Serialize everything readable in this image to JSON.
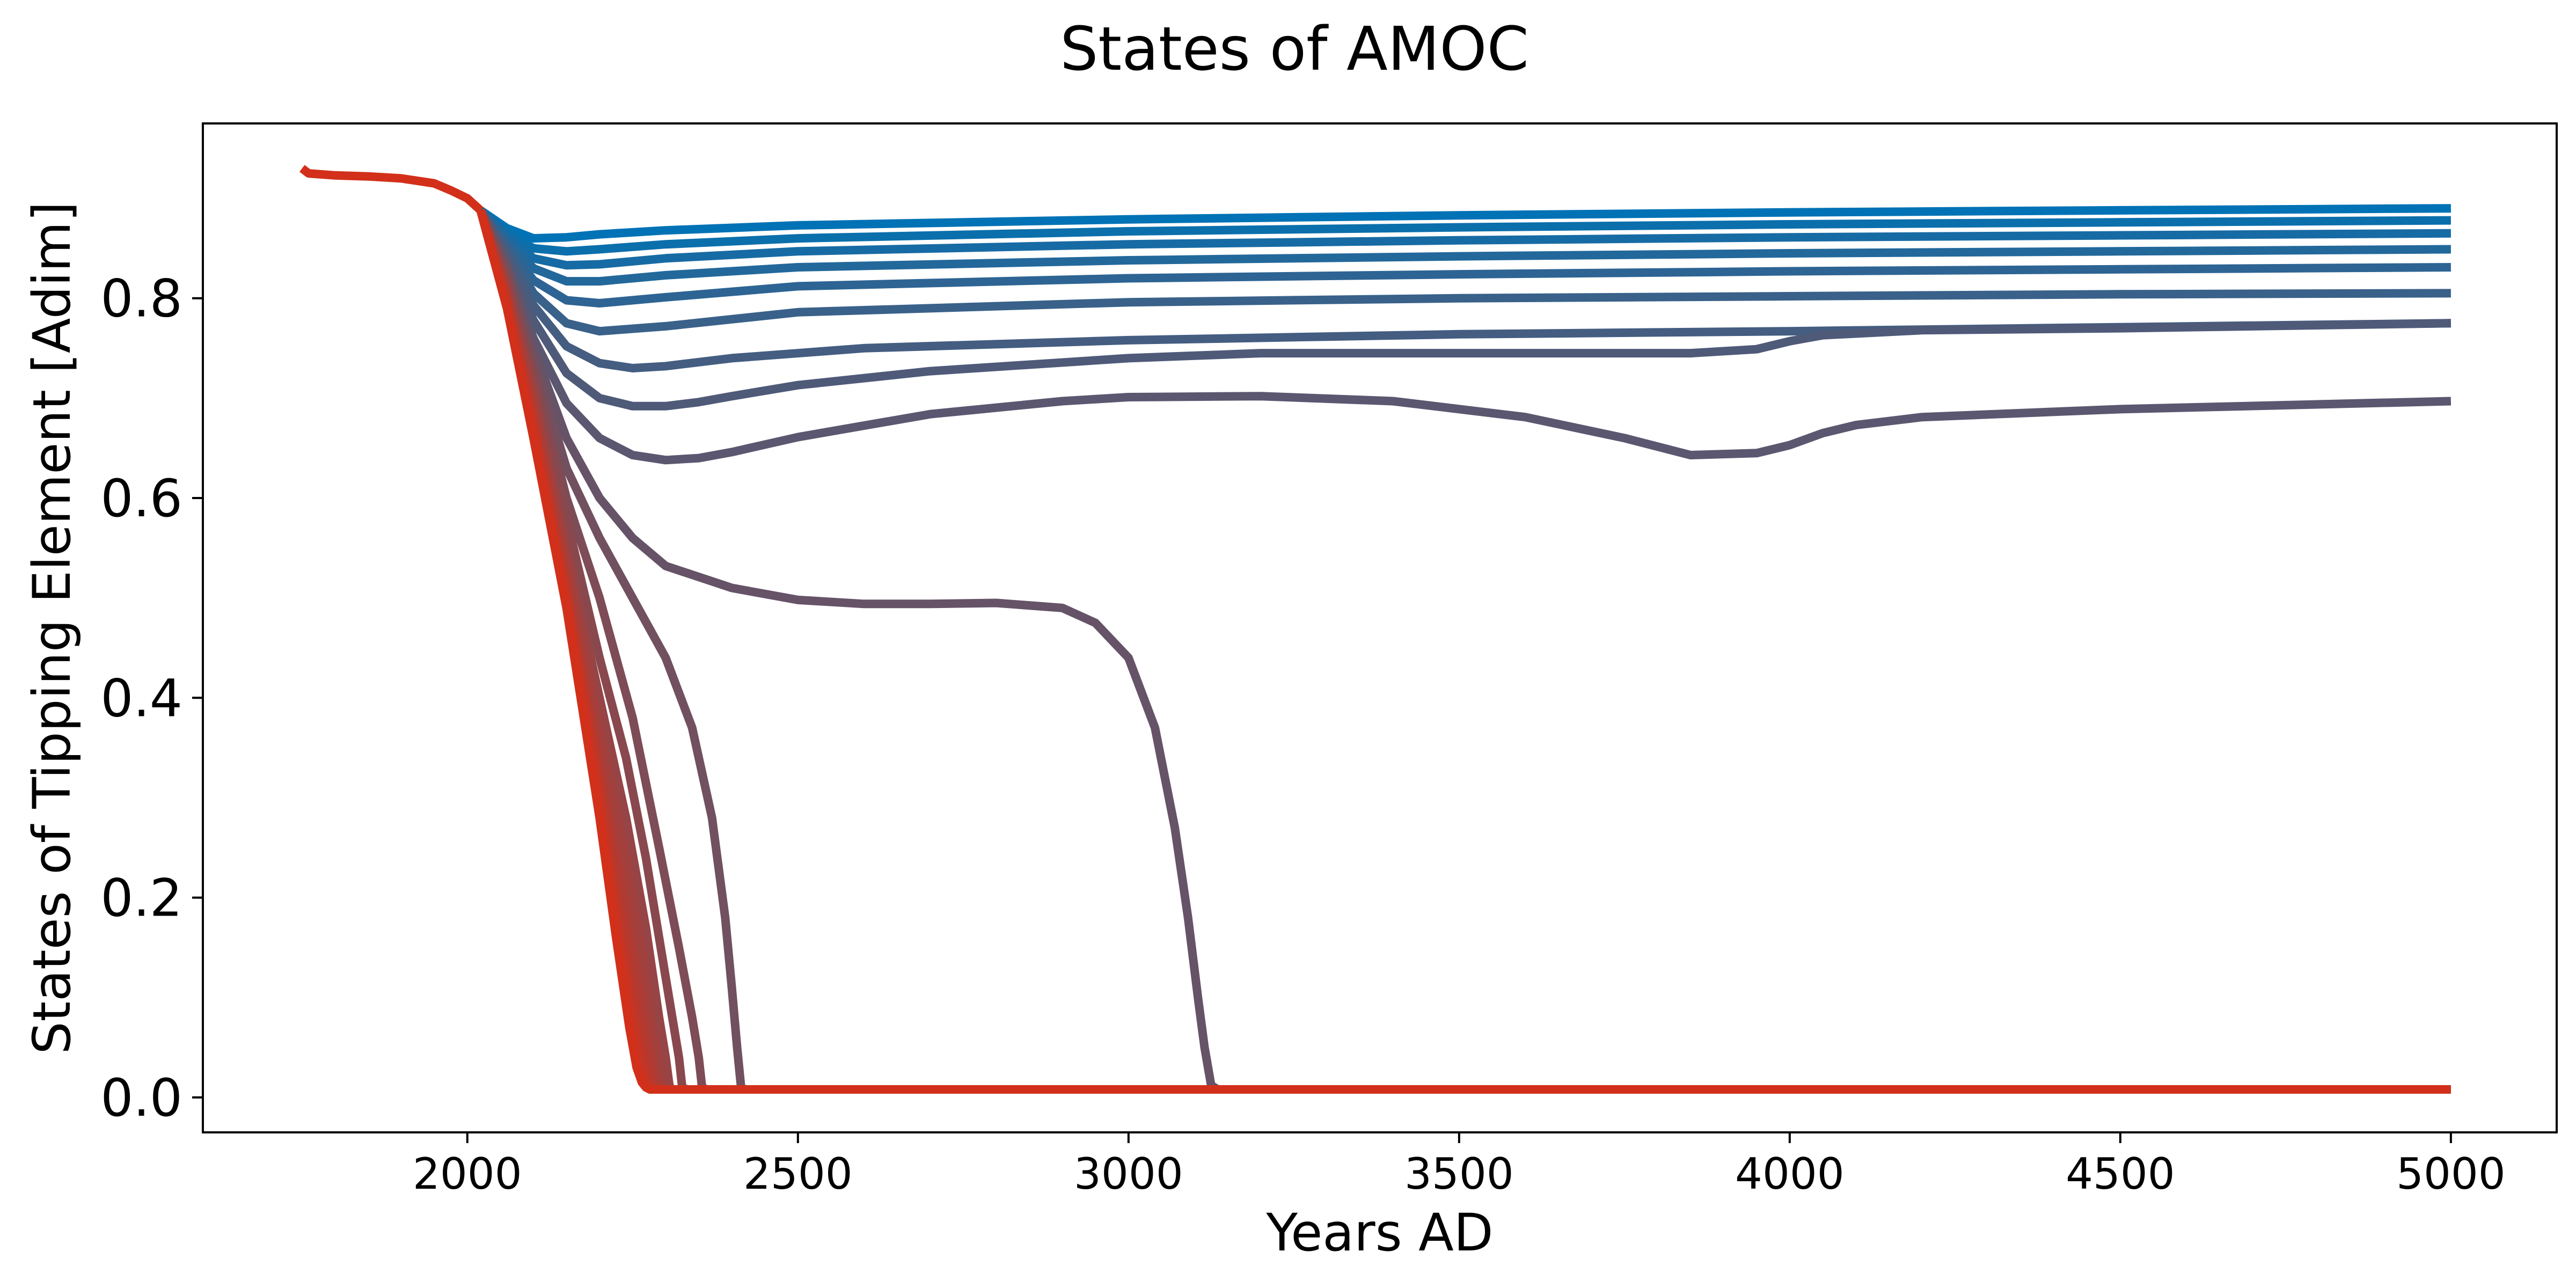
{
  "chart_data": {
    "type": "line",
    "title": "States of AMOC",
    "xlabel": "Years AD",
    "ylabel": "States of Tipping Element [Adim]",
    "xlim": [
      1600,
      5160
    ],
    "ylim": [
      -0.035,
      0.975
    ],
    "xticks": [
      2000,
      2500,
      3000,
      3500,
      4000,
      4500,
      5000
    ],
    "yticks": [
      0.0,
      0.2,
      0.4,
      0.6,
      0.8
    ],
    "xtick_labels": [
      "2000",
      "2500",
      "3000",
      "3500",
      "4000",
      "4500",
      "5000"
    ],
    "ytick_labels": [
      "0.0",
      "0.2",
      "0.4",
      "0.6",
      "0.8"
    ],
    "grid": false,
    "legend": "none",
    "color_start": "#0072b5",
    "color_end": "#d2301a",
    "history": {
      "x": [
        1750,
        1760,
        1800,
        1850,
        1900,
        1950,
        1975,
        2000,
        2020
      ],
      "y": [
        0.93,
        0.925,
        0.923,
        0.922,
        0.92,
        0.915,
        0.908,
        0.9,
        0.888
      ]
    },
    "series": [
      {
        "x": [
          2020,
          2060,
          2100,
          2150,
          2200,
          2300,
          2500,
          3000,
          3500,
          4000,
          4500,
          5000
        ],
        "y": [
          0.888,
          0.87,
          0.86,
          0.861,
          0.864,
          0.868,
          0.873,
          0.879,
          0.883,
          0.886,
          0.888,
          0.89
        ]
      },
      {
        "x": [
          2020,
          2060,
          2100,
          2150,
          2200,
          2300,
          2500,
          3000,
          3500,
          4000,
          4500,
          5000
        ],
        "y": [
          0.888,
          0.866,
          0.85,
          0.847,
          0.849,
          0.854,
          0.86,
          0.867,
          0.871,
          0.874,
          0.876,
          0.878
        ]
      },
      {
        "x": [
          2020,
          2060,
          2100,
          2150,
          2200,
          2300,
          2500,
          3000,
          3500,
          4000,
          4500,
          5000
        ],
        "y": [
          0.888,
          0.862,
          0.84,
          0.833,
          0.834,
          0.84,
          0.847,
          0.854,
          0.858,
          0.861,
          0.863,
          0.865
        ]
      },
      {
        "x": [
          2020,
          2060,
          2100,
          2150,
          2200,
          2300,
          2500,
          3000,
          3500,
          4000,
          4500,
          5000
        ],
        "y": [
          0.888,
          0.858,
          0.83,
          0.817,
          0.817,
          0.823,
          0.831,
          0.838,
          0.842,
          0.845,
          0.847,
          0.849
        ]
      },
      {
        "x": [
          2020,
          2060,
          2100,
          2150,
          2200,
          2300,
          2500,
          3000,
          3500,
          4000,
          4500,
          5000
        ],
        "y": [
          0.888,
          0.854,
          0.818,
          0.798,
          0.795,
          0.801,
          0.812,
          0.82,
          0.824,
          0.827,
          0.829,
          0.831
        ]
      },
      {
        "x": [
          2020,
          2060,
          2100,
          2150,
          2200,
          2300,
          2500,
          3000,
          3500,
          4000,
          4500,
          5000
        ],
        "y": [
          0.888,
          0.85,
          0.805,
          0.775,
          0.767,
          0.772,
          0.786,
          0.796,
          0.8,
          0.802,
          0.804,
          0.805
        ]
      },
      {
        "x": [
          2020,
          2060,
          2100,
          2150,
          2200,
          2250,
          2300,
          2400,
          2600,
          3000,
          3500,
          4000,
          4500,
          5000
        ],
        "y": [
          0.888,
          0.846,
          0.793,
          0.752,
          0.735,
          0.73,
          0.732,
          0.74,
          0.75,
          0.758,
          0.764,
          0.767,
          0.771,
          0.775
        ]
      },
      {
        "x": [
          2020,
          2060,
          2100,
          2150,
          2200,
          2250,
          2300,
          2350,
          2400,
          2500,
          2700,
          3000,
          3200,
          3500,
          3700,
          3850,
          3950,
          4000,
          4050,
          4200,
          4500,
          5000
        ],
        "y": [
          0.888,
          0.84,
          0.778,
          0.725,
          0.7,
          0.692,
          0.692,
          0.696,
          0.702,
          0.713,
          0.727,
          0.74,
          0.745,
          0.745,
          0.745,
          0.745,
          0.749,
          0.757,
          0.763,
          0.768,
          0.77,
          0.775
        ]
      },
      {
        "x": [
          2020,
          2060,
          2100,
          2150,
          2200,
          2250,
          2300,
          2350,
          2400,
          2500,
          2700,
          2900,
          3000,
          3200,
          3400,
          3600,
          3750,
          3850,
          3950,
          4000,
          4050,
          4100,
          4200,
          4500,
          5000
        ],
        "y": [
          0.888,
          0.835,
          0.76,
          0.695,
          0.66,
          0.643,
          0.638,
          0.64,
          0.646,
          0.661,
          0.684,
          0.697,
          0.701,
          0.702,
          0.697,
          0.681,
          0.66,
          0.643,
          0.645,
          0.653,
          0.665,
          0.673,
          0.681,
          0.689,
          0.697
        ]
      },
      {
        "x": [
          2020,
          2060,
          2100,
          2150,
          2200,
          2250,
          2300,
          2400,
          2500,
          2600,
          2700,
          2800,
          2900,
          2950,
          3000,
          3040,
          3070,
          3090,
          3105,
          3115,
          3125,
          3135,
          3200,
          4000,
          5000
        ],
        "y": [
          0.888,
          0.83,
          0.75,
          0.66,
          0.6,
          0.56,
          0.532,
          0.51,
          0.498,
          0.494,
          0.494,
          0.495,
          0.49,
          0.475,
          0.44,
          0.37,
          0.27,
          0.18,
          0.1,
          0.05,
          0.012,
          0.008,
          0.008,
          0.008,
          0.008
        ]
      },
      {
        "x": [
          2020,
          2060,
          2100,
          2150,
          2200,
          2250,
          2300,
          2340,
          2370,
          2390,
          2400,
          2408,
          2414,
          2420,
          3000,
          5000
        ],
        "y": [
          0.888,
          0.83,
          0.74,
          0.63,
          0.56,
          0.5,
          0.44,
          0.37,
          0.28,
          0.18,
          0.11,
          0.05,
          0.01,
          0.008,
          0.008,
          0.008
        ]
      },
      {
        "x": [
          2020,
          2060,
          2100,
          2150,
          2200,
          2250,
          2290,
          2320,
          2340,
          2350,
          2355,
          2362,
          3000,
          5000
        ],
        "y": [
          0.888,
          0.82,
          0.73,
          0.6,
          0.5,
          0.38,
          0.25,
          0.15,
          0.08,
          0.04,
          0.01,
          0.008,
          0.008,
          0.008
        ]
      },
      {
        "x": [
          2020,
          2060,
          2100,
          2150,
          2200,
          2240,
          2270,
          2290,
          2310,
          2320,
          2325,
          2332,
          3000,
          5000
        ],
        "y": [
          0.888,
          0.82,
          0.72,
          0.58,
          0.44,
          0.34,
          0.24,
          0.16,
          0.08,
          0.04,
          0.01,
          0.008,
          0.008,
          0.008
        ]
      },
      {
        "x": [
          2020,
          2060,
          2100,
          2150,
          2200,
          2240,
          2270,
          2290,
          2300,
          2306,
          2312,
          3000,
          5000
        ],
        "y": [
          0.888,
          0.81,
          0.71,
          0.55,
          0.4,
          0.28,
          0.17,
          0.08,
          0.04,
          0.01,
          0.008,
          0.008,
          0.008
        ]
      },
      {
        "x": [
          2020,
          2060,
          2100,
          2150,
          2200,
          2240,
          2265,
          2280,
          2290,
          2296,
          2302,
          3000,
          5000
        ],
        "y": [
          0.888,
          0.81,
          0.7,
          0.54,
          0.37,
          0.24,
          0.14,
          0.07,
          0.03,
          0.01,
          0.008,
          0.008,
          0.008
        ]
      },
      {
        "x": [
          2020,
          2060,
          2100,
          2150,
          2200,
          2235,
          2260,
          2275,
          2283,
          2288,
          2294,
          3000,
          5000
        ],
        "y": [
          0.888,
          0.8,
          0.69,
          0.52,
          0.34,
          0.21,
          0.11,
          0.05,
          0.02,
          0.01,
          0.008,
          0.008,
          0.008
        ]
      },
      {
        "x": [
          2020,
          2060,
          2100,
          2150,
          2200,
          2230,
          2255,
          2268,
          2276,
          2282,
          2288,
          3000,
          5000
        ],
        "y": [
          0.888,
          0.8,
          0.68,
          0.51,
          0.32,
          0.19,
          0.09,
          0.04,
          0.02,
          0.01,
          0.008,
          0.008,
          0.008
        ]
      },
      {
        "x": [
          2020,
          2060,
          2100,
          2150,
          2200,
          2228,
          2250,
          2262,
          2270,
          2276,
          2282,
          3000,
          5000
        ],
        "y": [
          0.888,
          0.79,
          0.67,
          0.5,
          0.3,
          0.17,
          0.08,
          0.035,
          0.015,
          0.01,
          0.008,
          0.008,
          0.008
        ]
      },
      {
        "x": [
          2020,
          2060,
          2100,
          2150,
          2200,
          2225,
          2245,
          2256,
          2264,
          2270,
          2276,
          3000,
          5000
        ],
        "y": [
          0.888,
          0.79,
          0.66,
          0.49,
          0.28,
          0.16,
          0.07,
          0.03,
          0.015,
          0.01,
          0.008,
          0.008,
          0.008
        ]
      }
    ]
  }
}
